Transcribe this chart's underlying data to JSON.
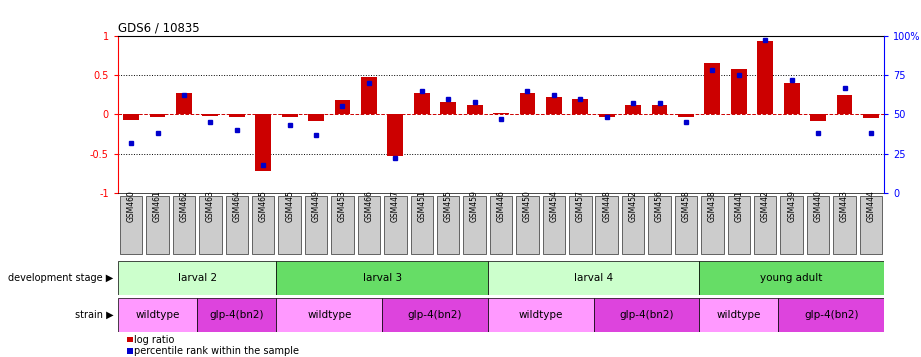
{
  "title": "GDS6 / 10835",
  "samples": [
    "GSM460",
    "GSM461",
    "GSM462",
    "GSM463",
    "GSM464",
    "GSM465",
    "GSM445",
    "GSM449",
    "GSM453",
    "GSM466",
    "GSM447",
    "GSM451",
    "GSM455",
    "GSM459",
    "GSM446",
    "GSM450",
    "GSM454",
    "GSM457",
    "GSM448",
    "GSM452",
    "GSM456",
    "GSM458",
    "GSM438",
    "GSM441",
    "GSM442",
    "GSM439",
    "GSM440",
    "GSM443",
    "GSM444"
  ],
  "log_ratio": [
    -0.07,
    -0.04,
    0.27,
    -0.02,
    -0.03,
    -0.72,
    -0.03,
    -0.08,
    0.18,
    0.48,
    -0.53,
    0.27,
    0.15,
    0.12,
    0.02,
    0.27,
    0.22,
    0.2,
    -0.03,
    0.12,
    0.12,
    -0.03,
    0.65,
    0.58,
    0.93,
    0.4,
    -0.08,
    0.25,
    -0.05
  ],
  "percentile": [
    32,
    38,
    62,
    45,
    40,
    18,
    43,
    37,
    55,
    70,
    22,
    65,
    60,
    58,
    47,
    65,
    62,
    60,
    48,
    57,
    57,
    45,
    78,
    75,
    97,
    72,
    38,
    67,
    38
  ],
  "bar_color": "#cc0000",
  "dot_color": "#0000cc",
  "zero_line_color": "#cc0000",
  "background_color": "#ffffff",
  "tick_label_bg": "#cccccc",
  "ylim_left": [
    -1,
    1
  ],
  "ylim_right": [
    0,
    100
  ],
  "yticks_left": [
    -1,
    -0.5,
    0,
    0.5,
    1
  ],
  "ytick_labels_left": [
    "-1",
    "-0.5",
    "0",
    "0.5",
    "1"
  ],
  "yticks_right": [
    0,
    25,
    50,
    75,
    100
  ],
  "ytick_labels_right": [
    "0",
    "25",
    "50",
    "75",
    "100%"
  ],
  "dev_stages": [
    {
      "label": "larval 2",
      "start": 0,
      "end": 6,
      "color": "#ccffcc"
    },
    {
      "label": "larval 3",
      "start": 6,
      "end": 14,
      "color": "#66dd66"
    },
    {
      "label": "larval 4",
      "start": 14,
      "end": 22,
      "color": "#ccffcc"
    },
    {
      "label": "young adult",
      "start": 22,
      "end": 29,
      "color": "#66dd66"
    }
  ],
  "strains": [
    {
      "label": "wildtype",
      "start": 0,
      "end": 3,
      "color": "#ff99ff"
    },
    {
      "label": "glp-4(bn2)",
      "start": 3,
      "end": 6,
      "color": "#dd44dd"
    },
    {
      "label": "wildtype",
      "start": 6,
      "end": 10,
      "color": "#ff99ff"
    },
    {
      "label": "glp-4(bn2)",
      "start": 10,
      "end": 14,
      "color": "#dd44dd"
    },
    {
      "label": "wildtype",
      "start": 14,
      "end": 18,
      "color": "#ff99ff"
    },
    {
      "label": "glp-4(bn2)",
      "start": 18,
      "end": 22,
      "color": "#dd44dd"
    },
    {
      "label": "wildtype",
      "start": 22,
      "end": 25,
      "color": "#ff99ff"
    },
    {
      "label": "glp-4(bn2)",
      "start": 25,
      "end": 29,
      "color": "#dd44dd"
    }
  ],
  "legend_items": [
    {
      "label": "log ratio",
      "color": "#cc0000"
    },
    {
      "label": "percentile rank within the sample",
      "color": "#0000cc"
    }
  ],
  "n_samples": 29
}
